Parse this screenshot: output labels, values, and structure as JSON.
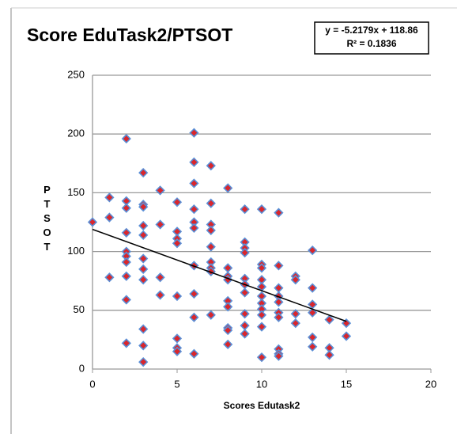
{
  "chart_data": {
    "type": "scatter",
    "title": "Score EduTask2/PTSOT",
    "trendline_label": [
      "y = -5.2179x + 118.86",
      "R² = 0.1836"
    ],
    "x_label": "Scores Edutask2",
    "y_label": "PTSOT",
    "series": [
      {
        "name": "PTSOT",
        "color": "#d9262c",
        "edge": "#5b8fd6",
        "x": [
          0,
          1,
          1,
          1,
          2,
          2,
          2,
          2,
          2,
          2,
          2,
          2,
          2,
          2,
          3,
          3,
          3,
          3,
          3,
          3,
          3,
          3,
          3,
          3,
          3,
          4,
          4,
          4,
          4,
          5,
          5,
          5,
          5,
          5,
          5,
          5,
          5,
          6,
          6,
          6,
          6,
          6,
          6,
          6,
          6,
          6,
          6,
          7,
          7,
          7,
          7,
          7,
          7,
          7,
          7,
          7,
          8,
          8,
          8,
          8,
          8,
          8,
          8,
          8,
          8,
          9,
          9,
          9,
          9,
          9,
          9,
          9,
          9,
          9,
          9,
          10,
          10,
          10,
          10,
          10,
          10,
          10,
          10,
          10,
          10,
          10,
          11,
          11,
          11,
          11,
          11,
          11,
          11,
          11,
          11,
          11,
          12,
          12,
          12,
          12,
          13,
          13,
          13,
          13,
          13,
          13,
          14,
          14,
          14,
          15,
          15
        ],
        "values": [
          125,
          146,
          129,
          78,
          196,
          143,
          137,
          116,
          100,
          96,
          91,
          79,
          59,
          22,
          167,
          140,
          138,
          122,
          114,
          94,
          85,
          76,
          34,
          20,
          6,
          152,
          123,
          78,
          63,
          142,
          117,
          111,
          107,
          62,
          26,
          18,
          15,
          201,
          176,
          158,
          136,
          125,
          120,
          88,
          64,
          44,
          13,
          173,
          141,
          123,
          118,
          104,
          91,
          86,
          83,
          46,
          154,
          86,
          79,
          76,
          58,
          53,
          35,
          33,
          21,
          136,
          108,
          103,
          99,
          77,
          72,
          65,
          47,
          37,
          30,
          136,
          89,
          86,
          76,
          70,
          62,
          56,
          51,
          46,
          36,
          10,
          133,
          88,
          69,
          62,
          57,
          48,
          44,
          17,
          13,
          11,
          79,
          76,
          47,
          39,
          101,
          69,
          55,
          48,
          27,
          19,
          42,
          18,
          12,
          39,
          28
        ]
      }
    ],
    "xlim": [
      0,
      20
    ],
    "xticks": [
      0,
      5,
      10,
      15,
      20
    ],
    "ylim": [
      0,
      250
    ],
    "yticks": [
      0,
      50,
      100,
      150,
      200,
      250
    ],
    "grid": true
  }
}
